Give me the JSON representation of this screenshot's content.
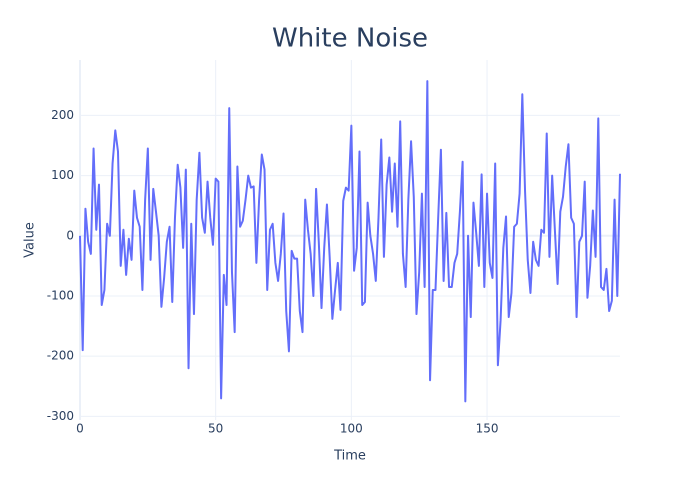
{
  "chart_data": {
    "type": "line",
    "title": "White Noise",
    "x_label": "Time",
    "y_label": "Value",
    "x": [
      0,
      1,
      2,
      3,
      4,
      5,
      6,
      7,
      8,
      9,
      10,
      11,
      12,
      13,
      14,
      15,
      16,
      17,
      18,
      19,
      20,
      21,
      22,
      23,
      24,
      25,
      26,
      27,
      28,
      29,
      30,
      31,
      32,
      33,
      34,
      35,
      36,
      37,
      38,
      39,
      40,
      41,
      42,
      43,
      44,
      45,
      46,
      47,
      48,
      49,
      50,
      51,
      52,
      53,
      54,
      55,
      56,
      57,
      58,
      59,
      60,
      61,
      62,
      63,
      64,
      65,
      66,
      67,
      68,
      69,
      70,
      71,
      72,
      73,
      74,
      75,
      76,
      77,
      78,
      79,
      80,
      81,
      82,
      83,
      84,
      85,
      86,
      87,
      88,
      89,
      90,
      91,
      92,
      93,
      94,
      95,
      96,
      97,
      98,
      99,
      100,
      101,
      102,
      103,
      104,
      105,
      106,
      107,
      108,
      109,
      110,
      111,
      112,
      113,
      114,
      115,
      116,
      117,
      118,
      119,
      120,
      121,
      122,
      123,
      124,
      125,
      126,
      127,
      128,
      129,
      130,
      131,
      132,
      133,
      134,
      135,
      136,
      137,
      138,
      139,
      140,
      141,
      142,
      143,
      144,
      145,
      146,
      147,
      148,
      149,
      150,
      151,
      152,
      153,
      154,
      155,
      156,
      157,
      158,
      159,
      160,
      161,
      162,
      163,
      164,
      165,
      166,
      167,
      168,
      169,
      170,
      171,
      172,
      173,
      174,
      175,
      176,
      177,
      178,
      179,
      180,
      181,
      182,
      183,
      184,
      185,
      186,
      187,
      188,
      189,
      190,
      191,
      192,
      193,
      194,
      195,
      196,
      197,
      198,
      199
    ],
    "values": [
      0,
      -190,
      45,
      -10,
      -30,
      145,
      10,
      85,
      -115,
      -90,
      20,
      0,
      120,
      175,
      140,
      -50,
      10,
      -65,
      -5,
      -40,
      75,
      30,
      15,
      -90,
      60,
      145,
      -40,
      78,
      40,
      0,
      -118,
      -70,
      -10,
      15,
      -110,
      30,
      118,
      80,
      -20,
      110,
      -220,
      20,
      -130,
      60,
      138,
      30,
      5,
      90,
      30,
      -15,
      95,
      90,
      -270,
      -65,
      -115,
      212,
      -60,
      -160,
      115,
      15,
      25,
      60,
      100,
      80,
      82,
      -45,
      60,
      135,
      110,
      -90,
      10,
      20,
      -45,
      -75,
      -30,
      37,
      -125,
      -192,
      -25,
      -38,
      -38,
      -125,
      -160,
      60,
      10,
      -30,
      -100,
      78,
      -10,
      -120,
      -20,
      52,
      -35,
      -138,
      -90,
      -45,
      -123,
      58,
      80,
      75,
      183,
      -58,
      -20,
      140,
      -115,
      -110,
      55,
      0,
      -30,
      -75,
      30,
      160,
      -35,
      85,
      130,
      40,
      120,
      15,
      190,
      -30,
      -85,
      60,
      157,
      65,
      -130,
      -60,
      70,
      -85,
      257,
      -240,
      -90,
      -90,
      30,
      143,
      -75,
      38,
      -85,
      -85,
      -45,
      -30,
      40,
      123,
      -275,
      0,
      -135,
      55,
      5,
      -50,
      102,
      -85,
      70,
      -45,
      -70,
      120,
      -215,
      -140,
      -20,
      32,
      -135,
      -95,
      15,
      20,
      70,
      235,
      75,
      -40,
      -95,
      -10,
      -40,
      -50,
      10,
      5,
      170,
      -35,
      100,
      10,
      -80,
      40,
      65,
      115,
      152,
      30,
      20,
      -135,
      -10,
      0,
      90,
      -103,
      -50,
      42,
      -35,
      195,
      -85,
      -90,
      -55,
      -125,
      -108,
      60,
      -100,
      103
    ],
    "color": "#636efa",
    "xlim": [
      0,
      199
    ],
    "xticks": [
      0,
      50,
      100,
      150
    ],
    "ylim": [
      -306,
      292
    ],
    "yticks": [
      -300,
      -200,
      -100,
      0,
      100,
      200
    ],
    "grid": true
  }
}
